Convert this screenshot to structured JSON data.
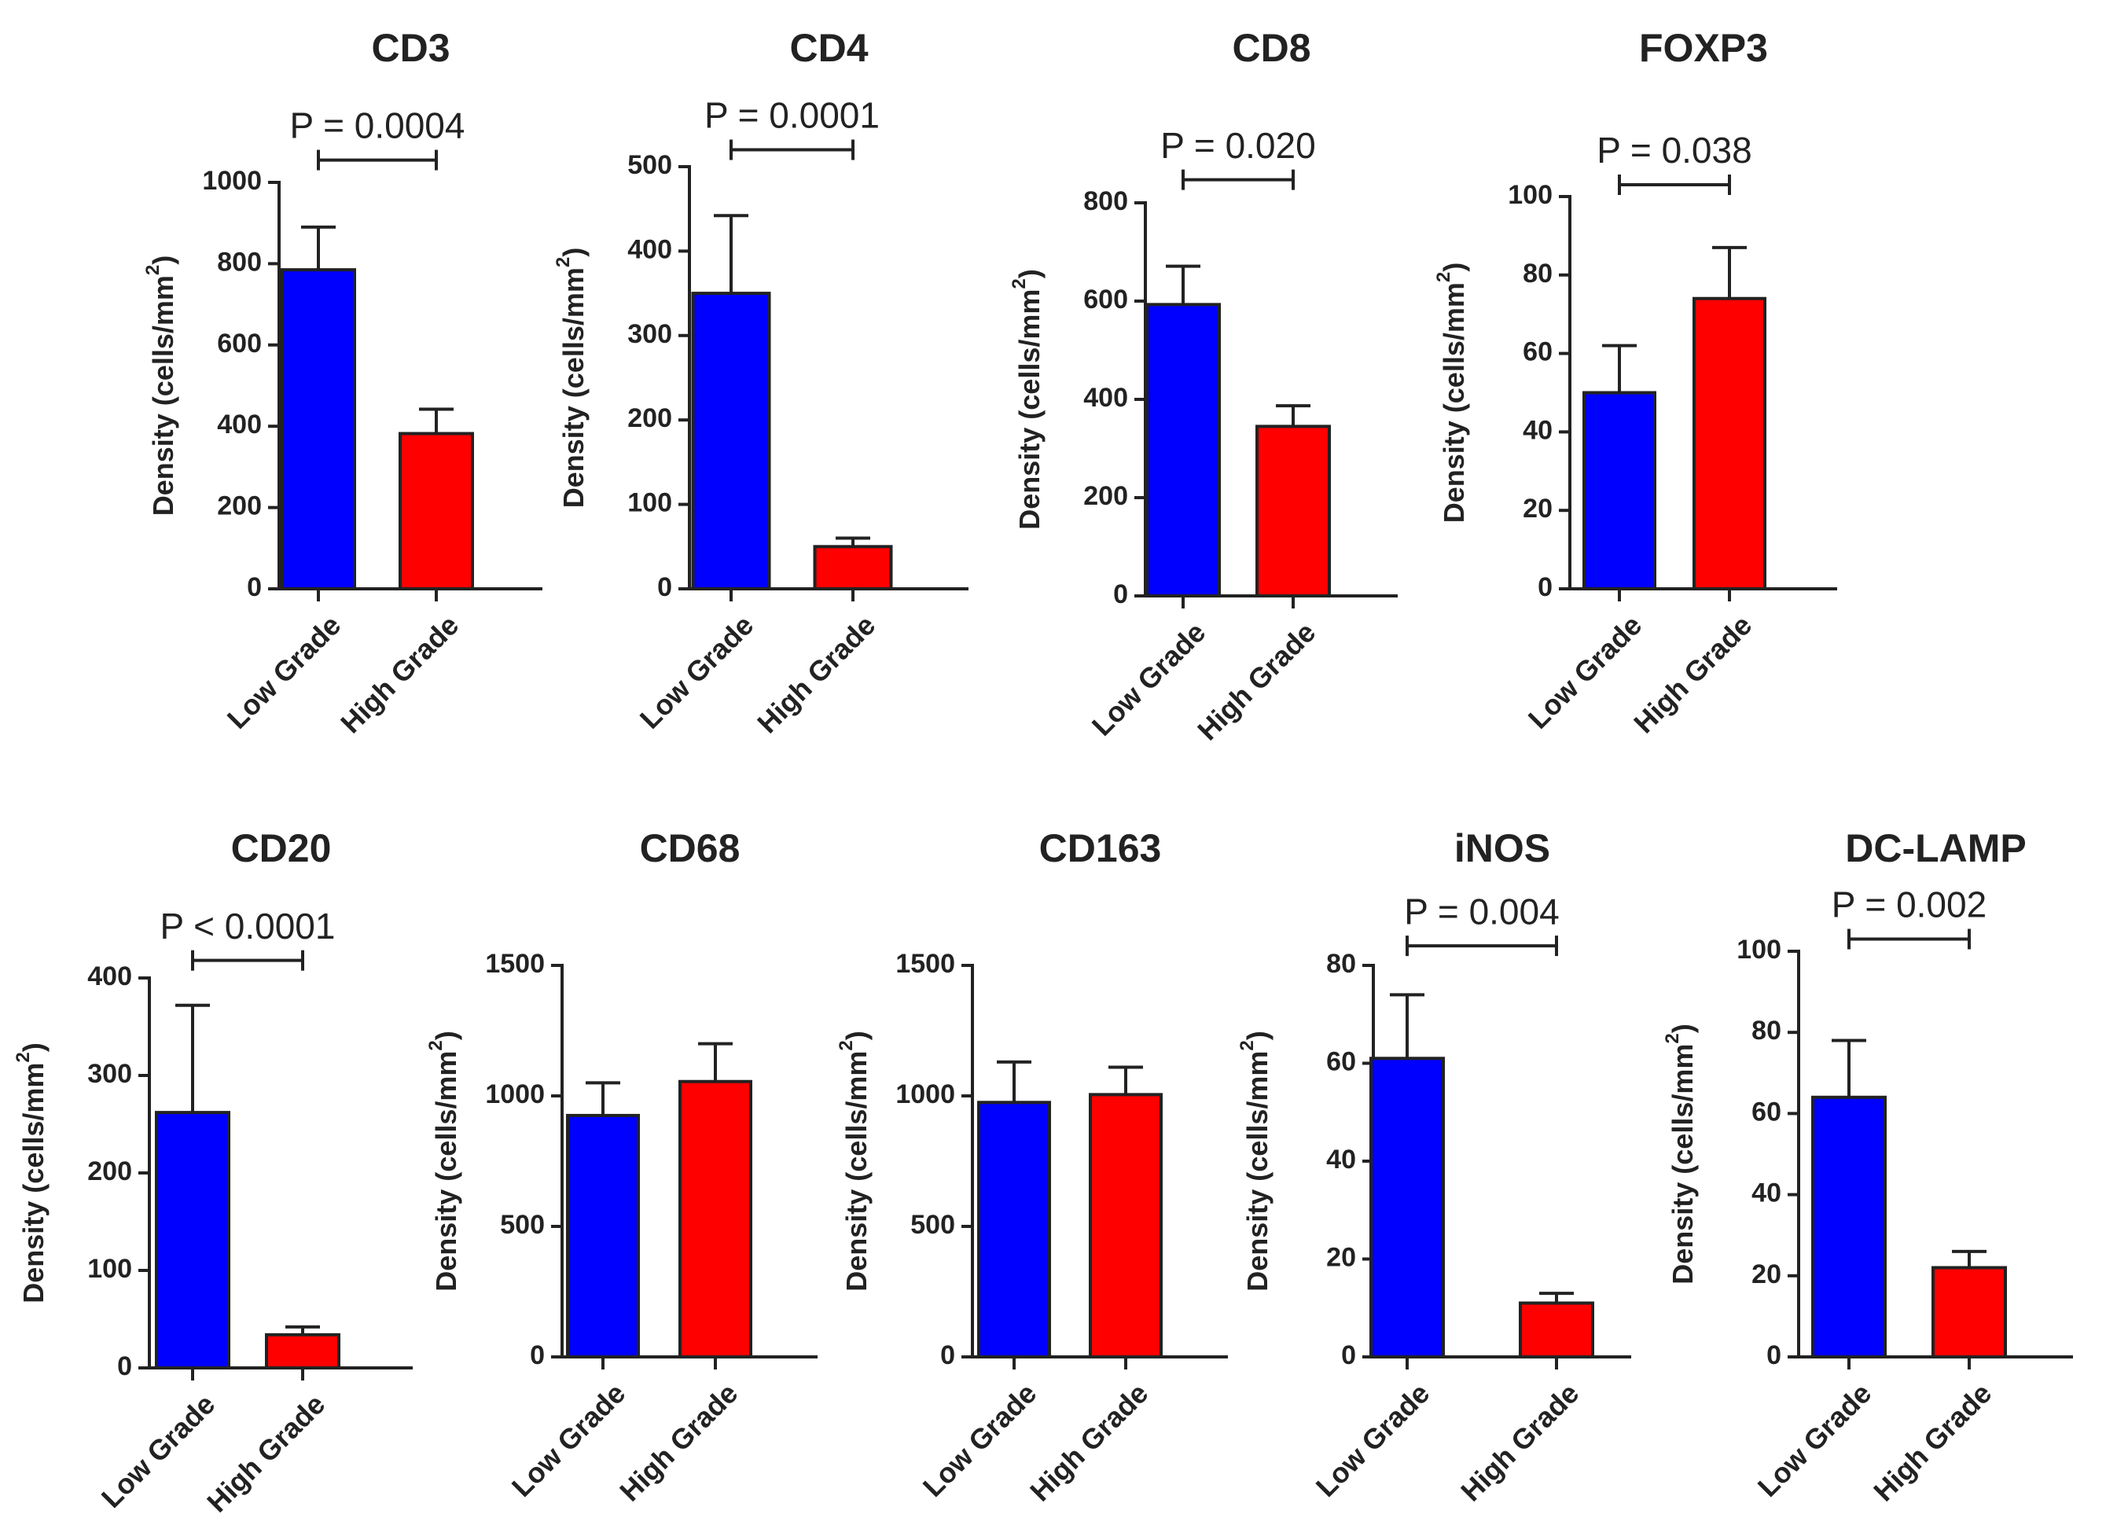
{
  "colors": {
    "low_grade": "#0000ff",
    "high_grade": "#ff0000",
    "ink": "#222222"
  },
  "chart_data": [
    {
      "type": "bar",
      "title": "CD3",
      "ylabel": "Density (cells/mm",
      "ylabel_sup": "2",
      "ylabel_tail": ")",
      "categories": [
        "Low Grade",
        "High Grade"
      ],
      "values": [
        785,
        382
      ],
      "errors": [
        105,
        60
      ],
      "ylim": [
        0,
        1000
      ],
      "yticks": [
        0,
        200,
        400,
        600,
        800,
        1000
      ],
      "pvalue": "P = 0.0004",
      "bracket_value": 1055
    },
    {
      "type": "bar",
      "title": "CD4",
      "ylabel": "Density (cells/mm",
      "ylabel_sup": "2",
      "ylabel_tail": ")",
      "categories": [
        "Low Grade",
        "High Grade"
      ],
      "values": [
        350,
        50
      ],
      "errors": [
        92,
        10
      ],
      "ylim": [
        0,
        500
      ],
      "yticks": [
        0,
        100,
        200,
        300,
        400,
        500
      ],
      "pvalue": "P = 0.0001",
      "bracket_value": 520
    },
    {
      "type": "bar",
      "title": "CD8",
      "ylabel": "Density (cells/mm",
      "ylabel_sup": "2",
      "ylabel_tail": ")",
      "categories": [
        "Low Grade",
        "High Grade"
      ],
      "values": [
        593,
        345
      ],
      "errors": [
        78,
        42
      ],
      "ylim": [
        0,
        800
      ],
      "yticks": [
        0,
        200,
        400,
        600,
        800
      ],
      "pvalue": "P = 0.020",
      "bracket_value": 847
    },
    {
      "type": "bar",
      "title": "FOXP3",
      "ylabel": "Density (cells/mm",
      "ylabel_sup": "2",
      "ylabel_tail": ")",
      "categories": [
        "Low Grade",
        "High Grade"
      ],
      "values": [
        50,
        74
      ],
      "errors": [
        12,
        13
      ],
      "ylim": [
        0,
        100
      ],
      "yticks": [
        0,
        20,
        40,
        60,
        80,
        100
      ],
      "pvalue": "P = 0.038",
      "bracket_value": 103
    },
    {
      "type": "bar",
      "title": "CD20",
      "ylabel": "Density (cells/mm",
      "ylabel_sup": "2",
      "ylabel_tail": ")",
      "categories": [
        "Low Grade",
        "High Grade"
      ],
      "values": [
        262,
        34
      ],
      "errors": [
        110,
        8
      ],
      "ylim": [
        0,
        400
      ],
      "yticks": [
        0,
        100,
        200,
        300,
        400
      ],
      "pvalue": "P < 0.0001",
      "bracket_value": 418
    },
    {
      "type": "bar",
      "title": "CD68",
      "ylabel": "Density (cells/mm",
      "ylabel_sup": "2",
      "ylabel_tail": ")",
      "categories": [
        "Low Grade",
        "High Grade"
      ],
      "values": [
        925,
        1055
      ],
      "errors": [
        125,
        145
      ],
      "ylim": [
        0,
        1500
      ],
      "yticks": [
        0,
        500,
        1000,
        1500
      ],
      "pvalue": null,
      "bracket_value": null
    },
    {
      "type": "bar",
      "title": "CD163",
      "ylabel": "Density (cells/mm",
      "ylabel_sup": "2",
      "ylabel_tail": ")",
      "categories": [
        "Low Grade",
        "High Grade"
      ],
      "values": [
        975,
        1005
      ],
      "errors": [
        155,
        105
      ],
      "ylim": [
        0,
        1500
      ],
      "yticks": [
        0,
        500,
        1000,
        1500
      ],
      "pvalue": null,
      "bracket_value": null
    },
    {
      "type": "bar",
      "title": "iNOS",
      "ylabel": "Density (cells/mm",
      "ylabel_sup": "2",
      "ylabel_tail": ")",
      "categories": [
        "Low Grade",
        "High Grade"
      ],
      "values": [
        61,
        11
      ],
      "errors": [
        13,
        2
      ],
      "ylim": [
        0,
        80
      ],
      "yticks": [
        0,
        20,
        40,
        60,
        80
      ],
      "pvalue": "P = 0.004",
      "bracket_value": 84
    },
    {
      "type": "bar",
      "title": "DC-LAMP",
      "ylabel": "Density (cells/mm",
      "ylabel_sup": "2",
      "ylabel_tail": ")",
      "categories": [
        "Low Grade",
        "High Grade"
      ],
      "values": [
        64,
        22
      ],
      "errors": [
        14,
        4
      ],
      "ylim": [
        0,
        100
      ],
      "yticks": [
        0,
        20,
        40,
        60,
        80,
        100
      ],
      "pvalue": "P = 0.002",
      "bracket_value": 103
    }
  ]
}
